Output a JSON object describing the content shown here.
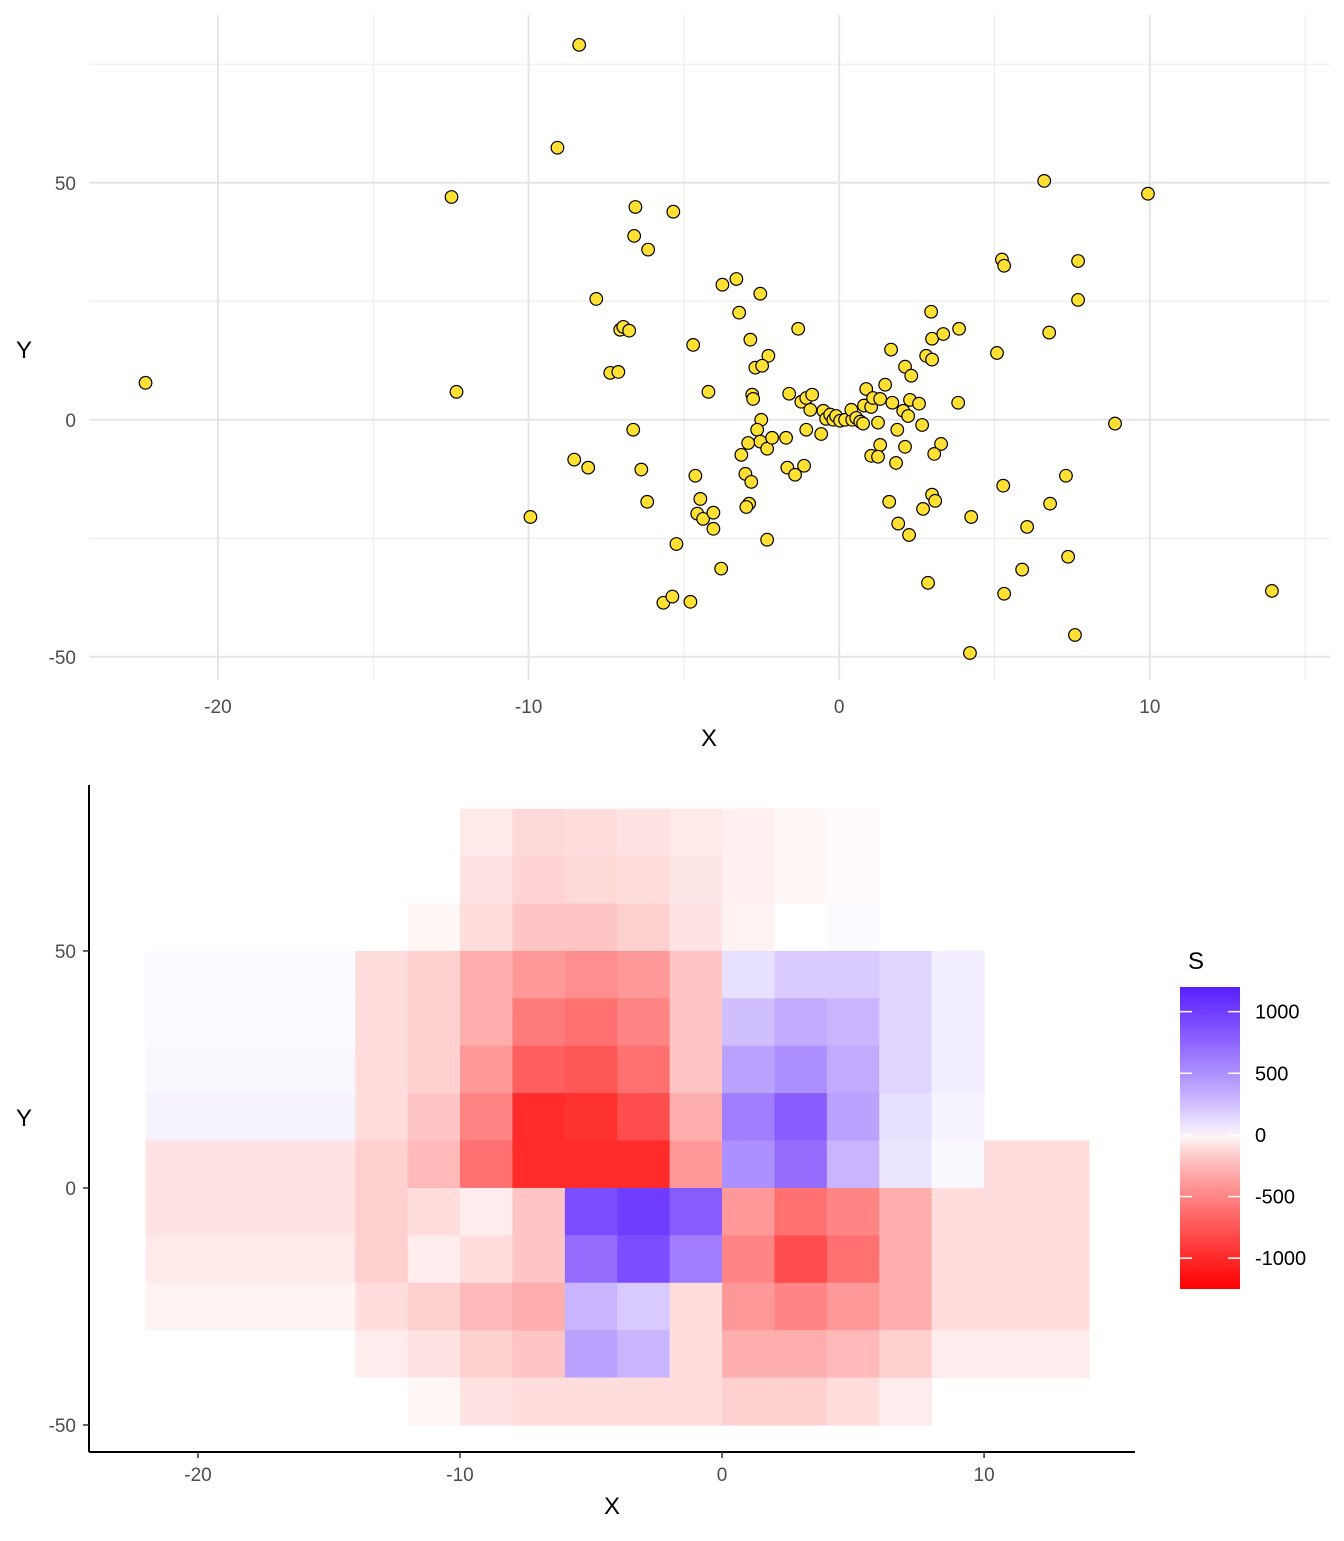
{
  "chart_data": [
    {
      "type": "scatter",
      "title": "",
      "xlabel": "X",
      "ylabel": "Y",
      "xlim": [
        -24.15,
        15.8
      ],
      "ylim": [
        -54.9,
        85.4
      ],
      "x_ticks": [
        -20,
        -10,
        0,
        10
      ],
      "y_ticks": [
        -50,
        0,
        50
      ],
      "x_tick_labels": [
        "-20",
        "-10",
        "0",
        "10"
      ],
      "y_tick_labels": [
        "-50",
        "0",
        "50"
      ],
      "grid": true,
      "point_fill": "#FFE033",
      "point_stroke": "#000000",
      "points": [
        [
          -8.37,
          79.1
        ],
        [
          -9.07,
          57.4
        ],
        [
          -12.48,
          47.0
        ],
        [
          -22.33,
          7.8
        ],
        [
          -12.32,
          5.9
        ],
        [
          -9.94,
          -20.5
        ],
        [
          -8.53,
          -8.4
        ],
        [
          -8.08,
          -10.1
        ],
        [
          -7.82,
          25.5
        ],
        [
          -6.56,
          44.9
        ],
        [
          -6.6,
          38.8
        ],
        [
          -6.15,
          35.9
        ],
        [
          -5.34,
          43.9
        ],
        [
          -7.05,
          19.0
        ],
        [
          -6.95,
          19.6
        ],
        [
          -6.76,
          18.8
        ],
        [
          -7.37,
          9.9
        ],
        [
          -7.11,
          10.1
        ],
        [
          -6.63,
          -2.1
        ],
        [
          -6.37,
          -10.5
        ],
        [
          -6.18,
          -17.3
        ],
        [
          -5.24,
          -26.2
        ],
        [
          -5.66,
          -38.6
        ],
        [
          -5.37,
          -37.3
        ],
        [
          -4.79,
          -38.4
        ],
        [
          -4.7,
          15.8
        ],
        [
          -4.21,
          5.9
        ],
        [
          -4.63,
          -11.8
        ],
        [
          -4.47,
          -16.7
        ],
        [
          -4.57,
          -19.8
        ],
        [
          -4.38,
          -20.9
        ],
        [
          -4.05,
          -19.6
        ],
        [
          -4.05,
          -23.0
        ],
        [
          -3.8,
          -31.4
        ],
        [
          -3.76,
          28.5
        ],
        [
          -3.31,
          29.7
        ],
        [
          -3.22,
          22.6
        ],
        [
          -2.54,
          26.6
        ],
        [
          -2.86,
          16.9
        ],
        [
          -2.28,
          13.5
        ],
        [
          -2.7,
          11.0
        ],
        [
          -2.48,
          11.4
        ],
        [
          -2.8,
          5.3
        ],
        [
          -2.77,
          4.4
        ],
        [
          -2.51,
          0.0
        ],
        [
          -2.64,
          -2.1
        ],
        [
          -2.54,
          -4.6
        ],
        [
          -2.93,
          -4.9
        ],
        [
          -3.15,
          -7.4
        ],
        [
          -2.32,
          -6.1
        ],
        [
          -2.16,
          -3.8
        ],
        [
          -3.02,
          -11.4
        ],
        [
          -2.83,
          -13.1
        ],
        [
          -2.9,
          -17.7
        ],
        [
          -2.99,
          -18.4
        ],
        [
          -2.32,
          -25.3
        ],
        [
          -1.71,
          -3.8
        ],
        [
          -1.61,
          5.5
        ],
        [
          -1.32,
          19.2
        ],
        [
          -1.67,
          -10.1
        ],
        [
          -1.42,
          -11.6
        ],
        [
          -1.13,
          -9.7
        ],
        [
          -1.22,
          3.8
        ],
        [
          -1.06,
          4.6
        ],
        [
          -0.87,
          5.3
        ],
        [
          -0.93,
          2.1
        ],
        [
          -1.06,
          -2.1
        ],
        [
          -0.58,
          -3.0
        ],
        [
          -0.51,
          1.9
        ],
        [
          -0.42,
          0.2
        ],
        [
          -0.29,
          1.1
        ],
        [
          -0.19,
          0.0
        ],
        [
          -0.1,
          0.8
        ],
        [
          0.03,
          -0.2
        ],
        [
          0.19,
          0.0
        ],
        [
          0.42,
          0.0
        ],
        [
          0.39,
          2.1
        ],
        [
          0.55,
          0.4
        ],
        [
          0.68,
          -0.4
        ],
        [
          0.77,
          -0.8
        ],
        [
          0.87,
          6.5
        ],
        [
          0.8,
          3.0
        ],
        [
          1.03,
          2.7
        ],
        [
          1.09,
          4.6
        ],
        [
          1.32,
          4.4
        ],
        [
          1.48,
          7.4
        ],
        [
          1.25,
          -0.6
        ],
        [
          1.32,
          -5.3
        ],
        [
          1.03,
          -7.6
        ],
        [
          1.25,
          -7.8
        ],
        [
          1.67,
          14.8
        ],
        [
          1.71,
          3.6
        ],
        [
          1.87,
          -2.1
        ],
        [
          1.83,
          -9.1
        ],
        [
          1.61,
          -17.3
        ],
        [
          1.9,
          -21.9
        ],
        [
          2.12,
          11.2
        ],
        [
          2.32,
          9.3
        ],
        [
          2.06,
          1.9
        ],
        [
          2.22,
          0.8
        ],
        [
          2.28,
          4.2
        ],
        [
          2.57,
          3.4
        ],
        [
          2.67,
          -1.1
        ],
        [
          2.12,
          -5.7
        ],
        [
          2.25,
          -24.3
        ],
        [
          2.7,
          -18.8
        ],
        [
          2.8,
          13.5
        ],
        [
          2.99,
          12.7
        ],
        [
          2.99,
          17.1
        ],
        [
          2.96,
          22.8
        ],
        [
          3.35,
          18.1
        ],
        [
          3.86,
          19.2
        ],
        [
          3.83,
          3.6
        ],
        [
          3.28,
          -5.1
        ],
        [
          3.06,
          -7.2
        ],
        [
          2.99,
          -15.8
        ],
        [
          3.09,
          -17.1
        ],
        [
          2.86,
          -34.4
        ],
        [
          4.25,
          -20.5
        ],
        [
          4.21,
          -49.2
        ],
        [
          5.08,
          14.1
        ],
        [
          5.24,
          33.8
        ],
        [
          5.31,
          32.5
        ],
        [
          5.28,
          -13.9
        ],
        [
          5.31,
          -36.7
        ],
        [
          5.89,
          -31.6
        ],
        [
          6.05,
          -22.6
        ],
        [
          6.6,
          50.4
        ],
        [
          6.76,
          18.4
        ],
        [
          6.79,
          -17.7
        ],
        [
          7.3,
          -11.8
        ],
        [
          7.37,
          -28.9
        ],
        [
          7.59,
          -45.4
        ],
        [
          7.69,
          33.5
        ],
        [
          7.69,
          25.3
        ],
        [
          8.88,
          -0.8
        ],
        [
          9.94,
          47.7
        ],
        [
          13.93,
          -36.1
        ]
      ]
    },
    {
      "type": "heatmap",
      "title": "",
      "xlabel": "X",
      "ylabel": "Y",
      "xlim": [
        -24.16,
        15.76
      ],
      "ylim": [
        -55.7,
        85.0
      ],
      "x_ticks": [
        -20,
        -10,
        0,
        10
      ],
      "y_ticks": [
        -50,
        0,
        50
      ],
      "x_tick_labels": [
        "-20",
        "-10",
        "0",
        "10"
      ],
      "y_tick_labels": [
        "-50",
        "0",
        "50"
      ],
      "grid": false,
      "cell_width": 2,
      "cell_height": 10,
      "x_centers": [
        -21,
        -19,
        -17,
        -15,
        -13,
        -11,
        -9,
        -7,
        -5,
        -3,
        -1,
        1,
        3,
        5,
        7,
        9,
        11,
        13
      ],
      "y_centers": [
        75,
        65,
        55,
        45,
        35,
        25,
        15,
        5,
        -5,
        -15,
        -25,
        -35,
        -45
      ],
      "values": [
        [
          null,
          null,
          null,
          null,
          null,
          0,
          -60,
          -120,
          -100,
          -80,
          -60,
          -40,
          -20,
          -10,
          0,
          null,
          null,
          null
        ],
        [
          null,
          null,
          null,
          null,
          null,
          0,
          -80,
          -140,
          -120,
          -100,
          -70,
          -40,
          -20,
          -10,
          0,
          null,
          null,
          null
        ],
        [
          null,
          null,
          null,
          null,
          null,
          -20,
          -100,
          -200,
          -200,
          -150,
          -80,
          -30,
          0,
          10,
          0,
          null,
          null,
          null
        ],
        [
          10,
          10,
          10,
          10,
          -100,
          -150,
          -300,
          -400,
          -450,
          -400,
          -200,
          100,
          200,
          200,
          150,
          50,
          null,
          null
        ],
        [
          10,
          10,
          10,
          10,
          -100,
          -150,
          -300,
          -550,
          -600,
          -500,
          -200,
          250,
          350,
          300,
          150,
          50,
          null,
          null
        ],
        [
          20,
          20,
          20,
          20,
          -100,
          -150,
          -400,
          -700,
          -750,
          -600,
          -200,
          400,
          500,
          350,
          150,
          50,
          null,
          null
        ],
        [
          30,
          30,
          30,
          30,
          -100,
          -200,
          -500,
          -1000,
          -950,
          -800,
          -300,
          600,
          800,
          400,
          100,
          30,
          null,
          null
        ],
        [
          -80,
          -80,
          -80,
          -80,
          -150,
          -250,
          -600,
          -1000,
          -1000,
          -1000,
          -400,
          500,
          700,
          300,
          80,
          20,
          -100,
          -100
        ],
        [
          -80,
          -80,
          -80,
          -80,
          -150,
          -100,
          -50,
          -200,
          900,
          1000,
          800,
          -400,
          -600,
          -500,
          -300,
          -100,
          -100,
          -100
        ],
        [
          -60,
          -60,
          -60,
          -60,
          -150,
          -50,
          -100,
          -200,
          700,
          900,
          600,
          -500,
          -800,
          -600,
          -300,
          -100,
          -100,
          -100
        ],
        [
          -30,
          -30,
          -30,
          -30,
          -100,
          -150,
          -250,
          -300,
          300,
          200,
          -100,
          -400,
          -500,
          -400,
          -300,
          -100,
          -100,
          -100
        ],
        [
          0,
          0,
          0,
          0,
          -50,
          -80,
          -150,
          -200,
          400,
          300,
          -100,
          -300,
          -300,
          -250,
          -150,
          -50,
          -50,
          -50
        ],
        [
          null,
          null,
          null,
          null,
          0,
          -20,
          -80,
          -100,
          -100,
          -100,
          -100,
          -150,
          -150,
          -100,
          -50,
          null,
          null,
          null
        ]
      ],
      "legend": {
        "title": "S",
        "placement": "right",
        "range": [
          -1250,
          1200
        ],
        "ticks": [
          1000,
          500,
          0,
          -500,
          -1000
        ],
        "tick_labels": [
          "1000",
          "500",
          "0",
          "-500",
          "-1000"
        ],
        "color_high": "#5A1FFF",
        "color_mid": "#FFFFFF",
        "color_low": "#FF0000"
      }
    }
  ]
}
